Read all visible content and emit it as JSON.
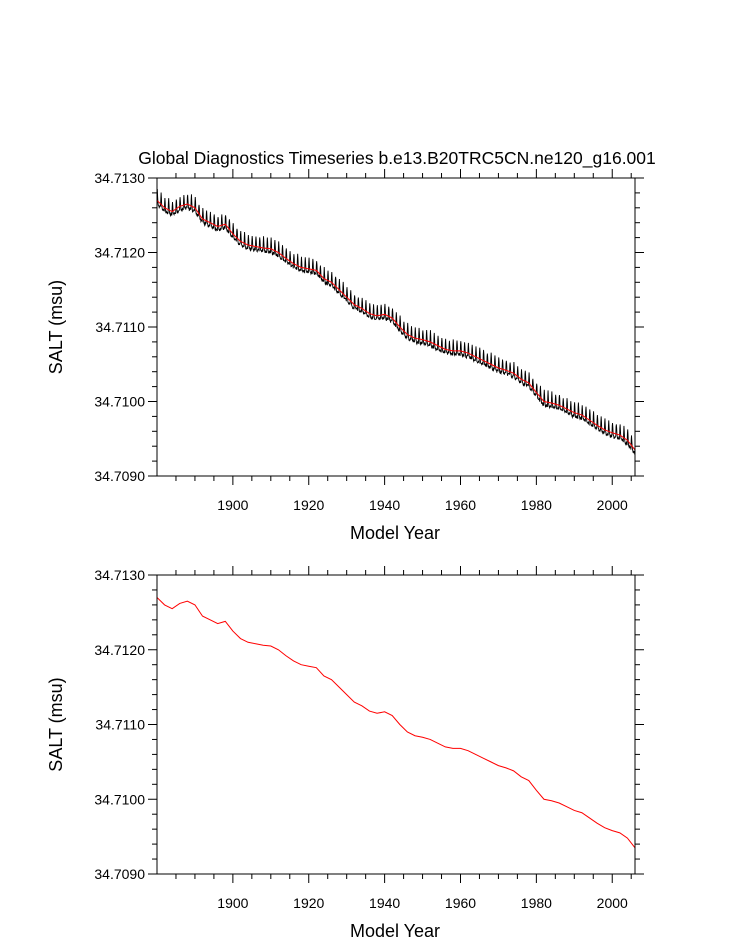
{
  "figure": {
    "title": "Global Diagnostics Timeseries b.e13.B20TRC5CN.ne120_g16.001"
  },
  "chart_data": [
    {
      "type": "line",
      "xlabel": "Model Year",
      "ylabel": "SALT (msu)",
      "xlim": [
        1880,
        2006
      ],
      "ylim": [
        34.709,
        34.713
      ],
      "xticks": [
        1900,
        1920,
        1940,
        1960,
        1980,
        2000
      ],
      "xtick_labels": [
        "1900",
        "1920",
        "1940",
        "1960",
        "1980",
        "2000"
      ],
      "yticks": [
        34.709,
        34.71,
        34.711,
        34.712,
        34.713
      ],
      "ytick_labels": [
        "34.7090",
        "34.7100",
        "34.7110",
        "34.7120",
        "34.7130"
      ],
      "grid": false,
      "series": [
        {
          "kind": "monthly",
          "color": "#000000",
          "seasonal_amplitude": 0.00014,
          "values_note_only_visual": false
        },
        {
          "kind": "annual_mean",
          "color": "#ff0000",
          "x": [
            1880,
            1882,
            1884,
            1886,
            1888,
            1890,
            1892,
            1894,
            1896,
            1898,
            1900,
            1902,
            1904,
            1906,
            1908,
            1910,
            1912,
            1914,
            1916,
            1918,
            1920,
            1922,
            1924,
            1926,
            1928,
            1930,
            1932,
            1934,
            1936,
            1938,
            1940,
            1942,
            1944,
            1946,
            1948,
            1950,
            1952,
            1954,
            1956,
            1958,
            1960,
            1962,
            1964,
            1966,
            1968,
            1970,
            1972,
            1974,
            1976,
            1978,
            1980,
            1982,
            1984,
            1986,
            1988,
            1990,
            1992,
            1994,
            1996,
            1998,
            2000,
            2002,
            2004,
            2006
          ],
          "y": [
            34.7127,
            34.7126,
            34.71255,
            34.71262,
            34.71265,
            34.7126,
            34.71245,
            34.7124,
            34.71235,
            34.71238,
            34.71225,
            34.71215,
            34.7121,
            34.71208,
            34.71206,
            34.71205,
            34.712,
            34.71192,
            34.71185,
            34.7118,
            34.71178,
            34.71176,
            34.71165,
            34.7116,
            34.7115,
            34.7114,
            34.7113,
            34.71125,
            34.71118,
            34.71115,
            34.71117,
            34.71112,
            34.711,
            34.7109,
            34.71085,
            34.71083,
            34.7108,
            34.71075,
            34.7107,
            34.71068,
            34.71068,
            34.71065,
            34.7106,
            34.71055,
            34.7105,
            34.71045,
            34.71042,
            34.71038,
            34.7103,
            34.71025,
            34.71012,
            34.71,
            34.70998,
            34.70995,
            34.7099,
            34.70985,
            34.70982,
            34.70975,
            34.70968,
            34.70962,
            34.70958,
            34.70955,
            34.70948,
            34.70935
          ]
        }
      ]
    },
    {
      "type": "line",
      "xlabel": "Model Year",
      "ylabel": "SALT (msu)",
      "xlim": [
        1880,
        2006
      ],
      "ylim": [
        34.709,
        34.713
      ],
      "xticks": [
        1900,
        1920,
        1940,
        1960,
        1980,
        2000
      ],
      "xtick_labels": [
        "1900",
        "1920",
        "1940",
        "1960",
        "1980",
        "2000"
      ],
      "yticks": [
        34.709,
        34.71,
        34.711,
        34.712,
        34.713
      ],
      "ytick_labels": [
        "34.7090",
        "34.7100",
        "34.7110",
        "34.7120",
        "34.7130"
      ],
      "grid": false,
      "series": [
        {
          "kind": "annual_mean",
          "color": "#ff0000",
          "x": [
            1880,
            1882,
            1884,
            1886,
            1888,
            1890,
            1892,
            1894,
            1896,
            1898,
            1900,
            1902,
            1904,
            1906,
            1908,
            1910,
            1912,
            1914,
            1916,
            1918,
            1920,
            1922,
            1924,
            1926,
            1928,
            1930,
            1932,
            1934,
            1936,
            1938,
            1940,
            1942,
            1944,
            1946,
            1948,
            1950,
            1952,
            1954,
            1956,
            1958,
            1960,
            1962,
            1964,
            1966,
            1968,
            1970,
            1972,
            1974,
            1976,
            1978,
            1980,
            1982,
            1984,
            1986,
            1988,
            1990,
            1992,
            1994,
            1996,
            1998,
            2000,
            2002,
            2004,
            2006
          ],
          "y": [
            34.7127,
            34.7126,
            34.71255,
            34.71262,
            34.71265,
            34.7126,
            34.71245,
            34.7124,
            34.71235,
            34.71238,
            34.71225,
            34.71215,
            34.7121,
            34.71208,
            34.71206,
            34.71205,
            34.712,
            34.71192,
            34.71185,
            34.7118,
            34.71178,
            34.71176,
            34.71165,
            34.7116,
            34.7115,
            34.7114,
            34.7113,
            34.71125,
            34.71118,
            34.71115,
            34.71117,
            34.71112,
            34.711,
            34.7109,
            34.71085,
            34.71083,
            34.7108,
            34.71075,
            34.7107,
            34.71068,
            34.71068,
            34.71065,
            34.7106,
            34.71055,
            34.7105,
            34.71045,
            34.71042,
            34.71038,
            34.7103,
            34.71025,
            34.71012,
            34.71,
            34.70998,
            34.70995,
            34.7099,
            34.70985,
            34.70982,
            34.70975,
            34.70968,
            34.70962,
            34.70958,
            34.70955,
            34.70948,
            34.70935
          ]
        }
      ]
    }
  ]
}
